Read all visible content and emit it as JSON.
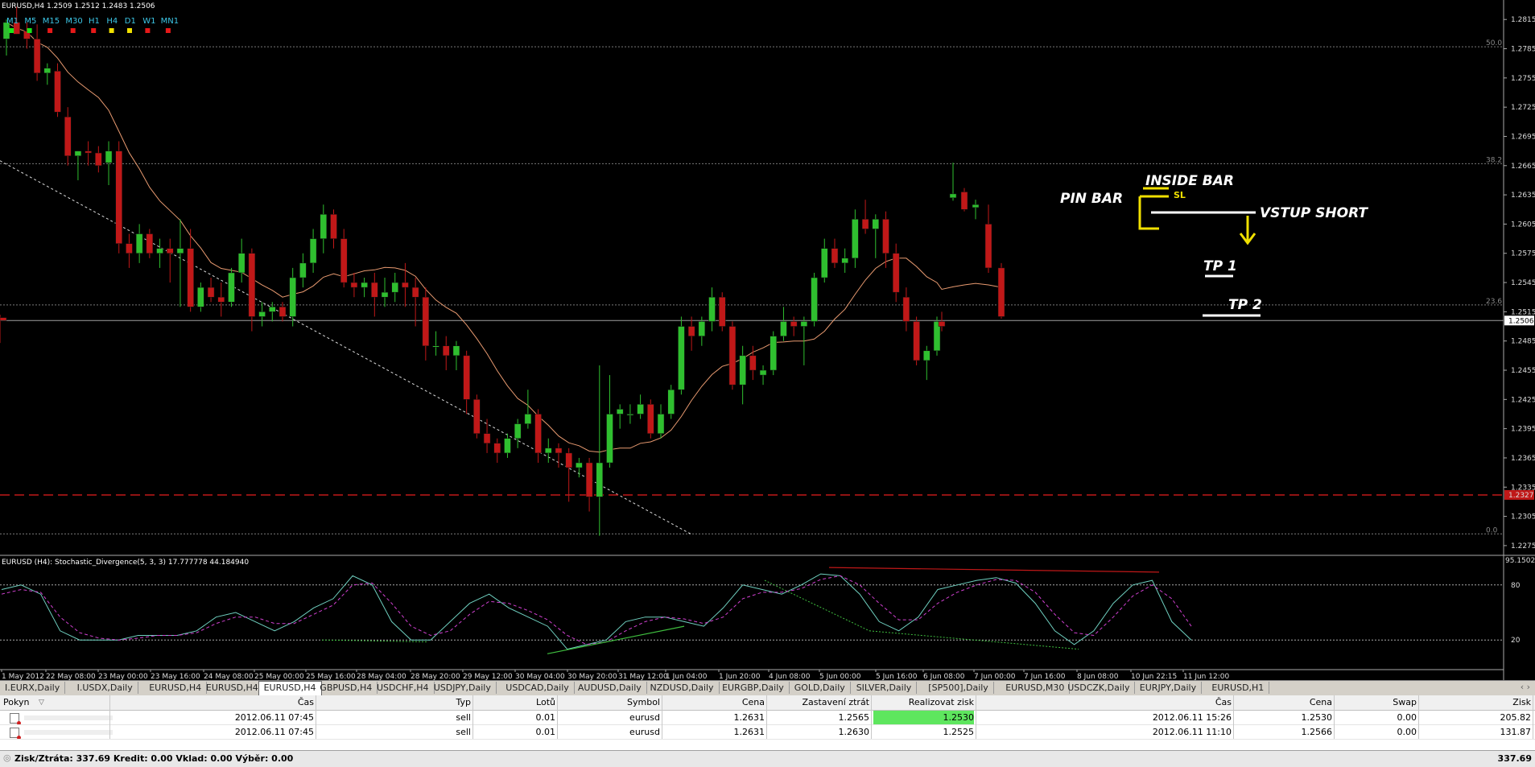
{
  "chart_header": {
    "symbol_line": "EURUSD,H4  1.2509 1.2512 1.2483 1.2506"
  },
  "timeframes": [
    {
      "label": "M1",
      "color": "#19e619"
    },
    {
      "label": "M5",
      "color": "#19e619"
    },
    {
      "label": "M15",
      "color": "#e61919"
    },
    {
      "label": "M30",
      "color": "#e61919"
    },
    {
      "label": "H1",
      "color": "#e61919"
    },
    {
      "label": "H4",
      "color": "#f0e000"
    },
    {
      "label": "D1",
      "color": "#f0e000"
    },
    {
      "label": "W1",
      "color": "#e61919"
    },
    {
      "label": "MN1",
      "color": "#e61919"
    }
  ],
  "price_axis": {
    "labels": [
      "1.2815",
      "1.2785",
      "1.2755",
      "1.2725",
      "1.2695",
      "1.2665",
      "1.2635",
      "1.2605",
      "1.2575",
      "1.2545",
      "1.2515",
      "1.2485",
      "1.2455",
      "1.2425",
      "1.2395",
      "1.2365",
      "1.2335",
      "1.2305",
      "1.2275"
    ],
    "current_price": "1.2506",
    "red_level": "1.2327"
  },
  "fib_labels": [
    "50.0",
    "38.2",
    "23.6",
    "0.0"
  ],
  "annotations": {
    "pin_bar": "PIN BAR",
    "inside_bar": "INSIDE BAR",
    "sl": "SL",
    "vstup": "VSTUP SHORT",
    "tp1": "TP 1",
    "tp2": "TP 2"
  },
  "indicator": {
    "title": "EURUSD (H4): Stochastic_Divergence(5, 3, 3) 17.777778 44.184940",
    "levels": [
      "95.1502",
      "80",
      "20"
    ]
  },
  "time_axis": [
    "1 May 2012",
    "22 May 08:00",
    "23 May 00:00",
    "23 May 16:00",
    "24 May 08:00",
    "25 May 00:00",
    "25 May 16:00",
    "28 May 04:00",
    "28 May 20:00",
    "29 May 12:00",
    "30 May 04:00",
    "30 May 20:00",
    "31 May 12:00",
    "1 Jun 04:00",
    "1 Jun 20:00",
    "4 Jun 08:00",
    "5 Jun 00:00",
    "5 Jun 16:00",
    "6 Jun 08:00",
    "7 Jun 00:00",
    "7 Jun 16:00",
    "8 Jun 08:00",
    "10 Jun 22:15",
    "11 Jun 12:00"
  ],
  "tabs": [
    "I.EURX,Daily",
    "I.USDX,Daily",
    "EURUSD,H4",
    "EURUSD,H4",
    "EURUSD,H4",
    "GBPUSD,H4",
    "USDCHF,H4",
    "USDJPY,Daily",
    "USDCAD,Daily",
    "AUDUSD,Daily",
    "NZDUSD,Daily",
    "EURGBP,Daily",
    "GOLD,Daily",
    "SILVER,Daily",
    "[SP500],Daily",
    "EURUSD,M30",
    "USDCZK,Daily",
    "EURJPY,Daily",
    "EURUSD,H1"
  ],
  "active_tab": 4,
  "terminal": {
    "headers": [
      "Pokyn",
      "Čas",
      "Typ",
      "Lotů",
      "Symbol",
      "Cena",
      "Zastavení ztrát",
      "Realizovat zisk",
      "Čas",
      "Cena",
      "Swap",
      "Zisk"
    ],
    "rows": [
      [
        "",
        "2012.06.11 07:45",
        "sell",
        "0.01",
        "eurusd",
        "1.2631",
        "1.2565",
        "1.2530",
        "2012.06.11 15:26",
        "1.2530",
        "0.00",
        "205.82"
      ],
      [
        "",
        "2012.06.11 07:45",
        "sell",
        "0.01",
        "eurusd",
        "1.2631",
        "1.2630",
        "1.2525",
        "2012.06.11 11:10",
        "1.2566",
        "0.00",
        "131.87"
      ]
    ],
    "status_text": "Zisk/Ztráta: 337.69  Kredit: 0.00  Vklad: 0.00  Výběr: 0.00",
    "status_total": "337.69"
  },
  "colors": {
    "bull": "#2fbf2f",
    "bear": "#c01818",
    "ma": "#e89a70",
    "highlight": "#5ee65e"
  },
  "chart_data": [
    {
      "type": "candlestick",
      "title": "EURUSD,H4",
      "ylim": [
        1.2265,
        1.2835
      ],
      "candles": [
        [
          1.2795,
          1.2815,
          1.2778,
          1.2812
        ],
        [
          1.2812,
          1.2828,
          1.28,
          1.28
        ],
        [
          1.2803,
          1.2812,
          1.2785,
          1.2795
        ],
        [
          1.2795,
          1.281,
          1.2752,
          1.276
        ],
        [
          1.276,
          1.277,
          1.2748,
          1.2765
        ],
        [
          1.2762,
          1.277,
          1.2715,
          1.272
        ],
        [
          1.2715,
          1.2725,
          1.2665,
          1.2675
        ],
        [
          1.2675,
          1.268,
          1.265,
          1.268
        ],
        [
          1.268,
          1.269,
          1.2665,
          1.2678
        ],
        [
          1.2678,
          1.2685,
          1.2658,
          1.2665
        ],
        [
          1.2668,
          1.269,
          1.2645,
          1.268
        ],
        [
          1.268,
          1.269,
          1.2575,
          1.2585
        ],
        [
          1.2585,
          1.2595,
          1.256,
          1.2575
        ],
        [
          1.2575,
          1.2605,
          1.2565,
          1.2595
        ],
        [
          1.2595,
          1.26,
          1.257,
          1.2575
        ],
        [
          1.2575,
          1.259,
          1.256,
          1.258
        ],
        [
          1.258,
          1.259,
          1.2545,
          1.2575
        ],
        [
          1.2575,
          1.261,
          1.252,
          1.258
        ],
        [
          1.258,
          1.26,
          1.2515,
          1.252
        ],
        [
          1.252,
          1.2545,
          1.2515,
          1.254
        ],
        [
          1.254,
          1.255,
          1.2525,
          1.253
        ],
        [
          1.253,
          1.2545,
          1.251,
          1.2525
        ],
        [
          1.2525,
          1.256,
          1.252,
          1.2555
        ],
        [
          1.2555,
          1.259,
          1.2545,
          1.2575
        ],
        [
          1.2575,
          1.258,
          1.2495,
          1.251
        ],
        [
          1.251,
          1.2525,
          1.25,
          1.2515
        ],
        [
          1.2515,
          1.2525,
          1.2505,
          1.252
        ],
        [
          1.252,
          1.2525,
          1.2505,
          1.251
        ],
        [
          1.251,
          1.256,
          1.25,
          1.255
        ],
        [
          1.255,
          1.2575,
          1.254,
          1.2565
        ],
        [
          1.2565,
          1.26,
          1.2555,
          1.259
        ],
        [
          1.259,
          1.2625,
          1.2575,
          1.2615
        ],
        [
          1.2615,
          1.262,
          1.258,
          1.259
        ],
        [
          1.259,
          1.26,
          1.254,
          1.2545
        ],
        [
          1.2545,
          1.2555,
          1.253,
          1.254
        ],
        [
          1.254,
          1.255,
          1.253,
          1.2545
        ],
        [
          1.2545,
          1.2555,
          1.251,
          1.253
        ],
        [
          1.253,
          1.255,
          1.252,
          1.2535
        ],
        [
          1.2535,
          1.2555,
          1.2525,
          1.2545
        ],
        [
          1.2545,
          1.2565,
          1.252,
          1.254
        ],
        [
          1.254,
          1.255,
          1.25,
          1.253
        ],
        [
          1.253,
          1.254,
          1.2465,
          1.248
        ],
        [
          1.248,
          1.2495,
          1.247,
          1.248
        ],
        [
          1.248,
          1.249,
          1.2455,
          1.247
        ],
        [
          1.247,
          1.2485,
          1.2455,
          1.248
        ],
        [
          1.247,
          1.2475,
          1.241,
          1.2425
        ],
        [
          1.2425,
          1.243,
          1.2385,
          1.239
        ],
        [
          1.239,
          1.2405,
          1.237,
          1.238
        ],
        [
          1.238,
          1.2385,
          1.236,
          1.237
        ],
        [
          1.237,
          1.239,
          1.2365,
          1.2385
        ],
        [
          1.2385,
          1.2405,
          1.2375,
          1.24
        ],
        [
          1.24,
          1.2435,
          1.2395,
          1.241
        ],
        [
          1.241,
          1.2415,
          1.236,
          1.237
        ],
        [
          1.237,
          1.2385,
          1.236,
          1.2375
        ],
        [
          1.2375,
          1.238,
          1.2355,
          1.237
        ],
        [
          1.237,
          1.2375,
          1.232,
          1.2355
        ],
        [
          1.2355,
          1.2365,
          1.2345,
          1.236
        ],
        [
          1.236,
          1.2365,
          1.231,
          1.2325
        ],
        [
          1.2325,
          1.246,
          1.2285,
          1.236
        ],
        [
          1.236,
          1.245,
          1.2355,
          1.241
        ],
        [
          1.241,
          1.242,
          1.2395,
          1.2415
        ],
        [
          1.241,
          1.242,
          1.24,
          1.241
        ],
        [
          1.241,
          1.243,
          1.2405,
          1.242
        ],
        [
          1.242,
          1.2425,
          1.2385,
          1.239
        ],
        [
          1.239,
          1.242,
          1.2385,
          1.241
        ],
        [
          1.241,
          1.244,
          1.2405,
          1.2435
        ],
        [
          1.2435,
          1.251,
          1.243,
          1.25
        ],
        [
          1.25,
          1.251,
          1.2475,
          1.249
        ],
        [
          1.249,
          1.251,
          1.248,
          1.2505
        ],
        [
          1.2505,
          1.254,
          1.2495,
          1.253
        ],
        [
          1.253,
          1.2535,
          1.2495,
          1.25
        ],
        [
          1.25,
          1.2505,
          1.2435,
          1.244
        ],
        [
          1.244,
          1.248,
          1.242,
          1.247
        ],
        [
          1.247,
          1.248,
          1.2445,
          1.2455
        ],
        [
          1.245,
          1.246,
          1.244,
          1.2455
        ],
        [
          1.2455,
          1.2495,
          1.245,
          1.249
        ],
        [
          1.249,
          1.252,
          1.2485,
          1.2505
        ],
        [
          1.2505,
          1.251,
          1.249,
          1.25
        ],
        [
          1.25,
          1.251,
          1.246,
          1.2505
        ],
        [
          1.2505,
          1.2555,
          1.25,
          1.255
        ],
        [
          1.255,
          1.259,
          1.2545,
          1.258
        ],
        [
          1.258,
          1.259,
          1.256,
          1.2565
        ],
        [
          1.2565,
          1.258,
          1.2555,
          1.257
        ],
        [
          1.257,
          1.262,
          1.256,
          1.261
        ],
        [
          1.261,
          1.263,
          1.2595,
          1.26
        ],
        [
          1.26,
          1.2615,
          1.257,
          1.261
        ],
        [
          1.261,
          1.2618,
          1.256,
          1.2575
        ],
        [
          1.2575,
          1.2585,
          1.2525,
          1.2535
        ],
        [
          1.253,
          1.254,
          1.2495,
          1.2505
        ],
        [
          1.2505,
          1.251,
          1.246,
          1.2465
        ],
        [
          1.2465,
          1.248,
          1.2445,
          1.2475
        ],
        [
          1.2475,
          1.251,
          1.247,
          1.2505
        ],
        [
          1.2505,
          1.2515,
          1.2495,
          1.25
        ],
        [
          1.2632,
          1.2668,
          1.2629,
          1.2636
        ],
        [
          1.2638,
          1.2642,
          1.2618,
          1.262
        ],
        [
          1.2622,
          1.263,
          1.261,
          1.2625
        ],
        [
          1.2605,
          1.2625,
          1.2555,
          1.256
        ],
        [
          1.256,
          1.2565,
          1.2508,
          1.251
        ],
        [
          1.2509,
          1.2512,
          1.2483,
          1.2506
        ]
      ],
      "ma_start": [
        1.277,
        1.276,
        1.273,
        1.269,
        1.265,
        1.262,
        1.26,
        1.258,
        1.257,
        1.256,
        1.254,
        1.252,
        1.249,
        1.246,
        1.243,
        1.241,
        1.2405,
        1.241,
        1.2425,
        1.2445,
        1.2455,
        1.247,
        1.249,
        1.2505,
        1.2515,
        1.251,
        1.25,
        1.2515,
        1.2545,
        1.254
      ]
    },
    {
      "type": "line",
      "title": "Stochastic_Divergence(5, 3, 3)",
      "ylim": [
        0,
        100
      ],
      "series": [
        {
          "name": "main",
          "color": "#6fd0c0",
          "values": [
            75,
            80,
            70,
            30,
            20,
            20,
            20,
            25,
            25,
            25,
            30,
            45,
            50,
            40,
            30,
            40,
            55,
            65,
            90,
            80,
            40,
            20,
            20,
            40,
            60,
            70,
            55,
            45,
            35,
            10,
            15,
            20,
            40,
            45,
            45,
            40,
            35,
            55,
            80,
            75,
            70,
            80,
            92,
            90,
            70,
            40,
            30,
            45,
            75,
            80,
            85,
            88,
            82,
            60,
            30,
            15,
            30,
            60,
            80,
            85,
            40,
            20
          ]
        },
        {
          "name": "signal",
          "color": "#d040d0",
          "values": [
            70,
            75,
            72,
            45,
            28,
            22,
            20,
            22,
            25,
            25,
            28,
            38,
            45,
            45,
            38,
            38,
            48,
            58,
            80,
            82,
            60,
            35,
            25,
            30,
            48,
            62,
            60,
            52,
            42,
            25,
            15,
            18,
            30,
            40,
            45,
            43,
            38,
            45,
            65,
            72,
            72,
            76,
            86,
            90,
            80,
            60,
            42,
            42,
            60,
            72,
            80,
            86,
            85,
            72,
            48,
            28,
            25,
            45,
            68,
            80,
            65,
            35
          ]
        }
      ]
    }
  ]
}
